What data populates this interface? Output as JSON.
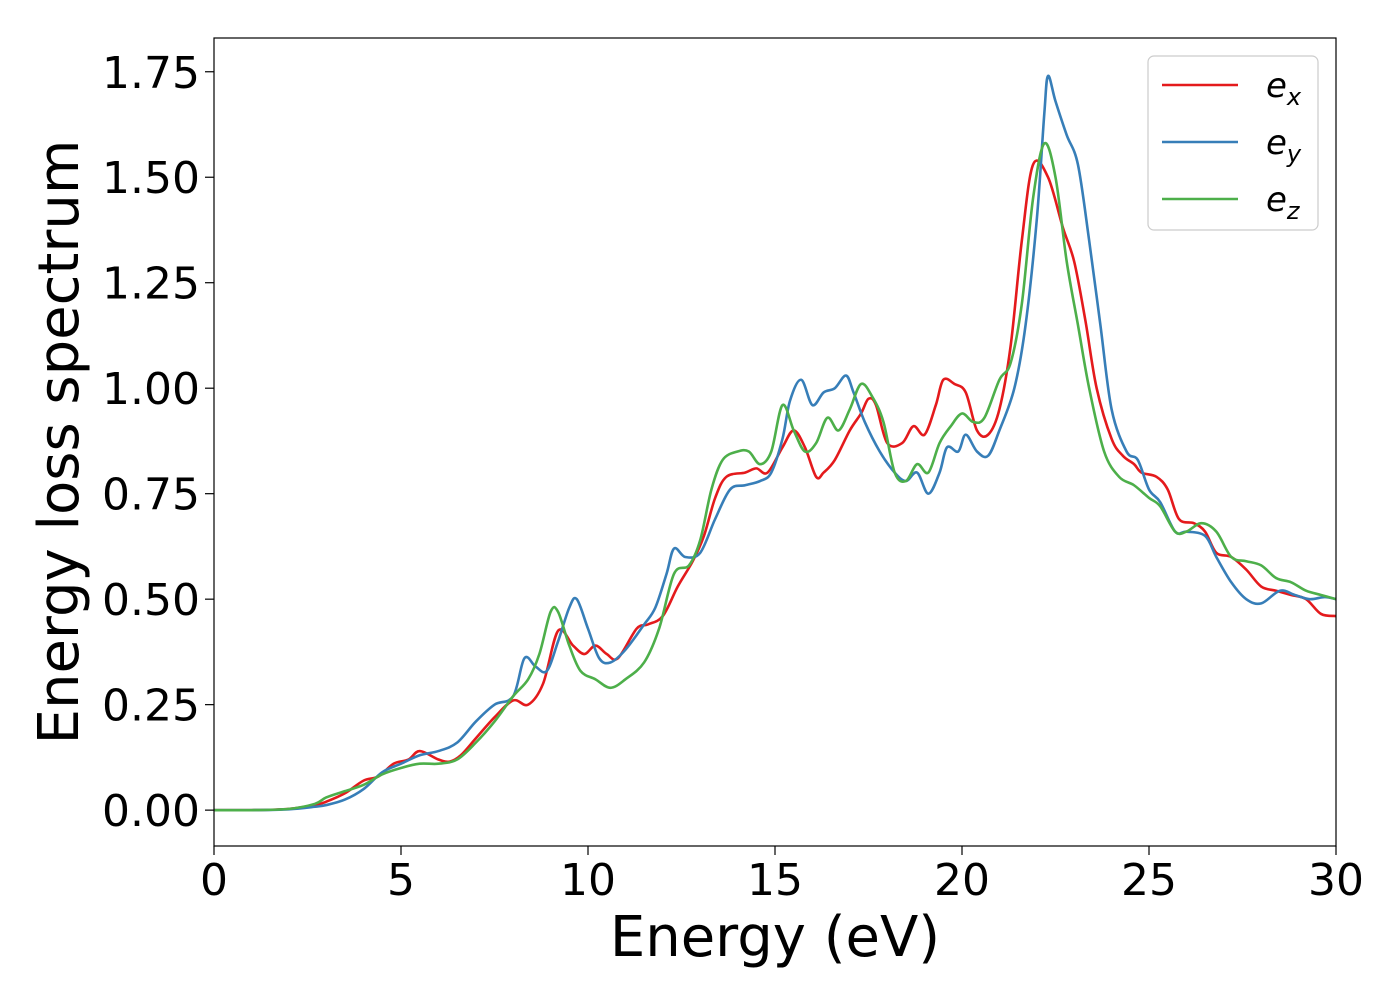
{
  "chart_data": {
    "type": "line",
    "xlabel": "Energy (eV)",
    "ylabel": "Energy loss spectrum",
    "xlim": [
      0,
      30
    ],
    "ylim": [
      -0.085,
      1.83
    ],
    "xticks": [
      0,
      5,
      10,
      15,
      20,
      25,
      30
    ],
    "xtick_labels": [
      "0",
      "5",
      "10",
      "15",
      "20",
      "25",
      "30"
    ],
    "yticks": [
      0,
      0.25,
      0.5,
      0.75,
      1.0,
      1.25,
      1.5,
      1.75
    ],
    "ytick_labels": [
      "0.00",
      "0.25",
      "0.50",
      "0.75",
      "1.00",
      "1.25",
      "1.50",
      "1.75"
    ],
    "grid": false,
    "legend_position": "top-right",
    "series": [
      {
        "name": "e",
        "subscript": "x",
        "color": "#e41a1c",
        "points": [
          [
            0,
            0
          ],
          [
            1,
            0
          ],
          [
            2,
            0.003
          ],
          [
            2.7,
            0.012
          ],
          [
            3,
            0.02
          ],
          [
            3.5,
            0.04
          ],
          [
            4,
            0.07
          ],
          [
            4.4,
            0.08
          ],
          [
            4.8,
            0.11
          ],
          [
            5.2,
            0.12
          ],
          [
            5.5,
            0.14
          ],
          [
            6,
            0.12
          ],
          [
            6.3,
            0.115
          ],
          [
            6.6,
            0.13
          ],
          [
            7,
            0.17
          ],
          [
            7.5,
            0.22
          ],
          [
            8,
            0.26
          ],
          [
            8.4,
            0.25
          ],
          [
            8.8,
            0.3
          ],
          [
            9.2,
            0.425
          ],
          [
            9.6,
            0.39
          ],
          [
            9.9,
            0.37
          ],
          [
            10.2,
            0.39
          ],
          [
            10.5,
            0.37
          ],
          [
            10.8,
            0.36
          ],
          [
            11.3,
            0.43
          ],
          [
            11.6,
            0.44
          ],
          [
            12,
            0.46
          ],
          [
            12.4,
            0.53
          ],
          [
            12.8,
            0.59
          ],
          [
            13.1,
            0.65
          ],
          [
            13.4,
            0.74
          ],
          [
            13.7,
            0.79
          ],
          [
            14.2,
            0.8
          ],
          [
            14.5,
            0.81
          ],
          [
            14.8,
            0.8
          ],
          [
            15.2,
            0.86
          ],
          [
            15.5,
            0.9
          ],
          [
            15.8,
            0.86
          ],
          [
            16.1,
            0.79
          ],
          [
            16.3,
            0.8
          ],
          [
            16.6,
            0.83
          ],
          [
            17,
            0.9
          ],
          [
            17.3,
            0.94
          ],
          [
            17.5,
            0.975
          ],
          [
            17.7,
            0.96
          ],
          [
            18,
            0.87
          ],
          [
            18.4,
            0.87
          ],
          [
            18.7,
            0.91
          ],
          [
            19,
            0.89
          ],
          [
            19.3,
            0.96
          ],
          [
            19.5,
            1.02
          ],
          [
            19.8,
            1.01
          ],
          [
            20.1,
            0.99
          ],
          [
            20.4,
            0.9
          ],
          [
            20.7,
            0.89
          ],
          [
            21,
            0.95
          ],
          [
            21.3,
            1.1
          ],
          [
            21.6,
            1.35
          ],
          [
            21.9,
            1.53
          ],
          [
            22.3,
            1.5
          ],
          [
            22.7,
            1.38
          ],
          [
            23,
            1.3
          ],
          [
            23.3,
            1.16
          ],
          [
            23.6,
            1.0
          ],
          [
            24,
            0.88
          ],
          [
            24.3,
            0.84
          ],
          [
            24.6,
            0.82
          ],
          [
            24.8,
            0.8
          ],
          [
            25.2,
            0.79
          ],
          [
            25.5,
            0.76
          ],
          [
            25.8,
            0.69
          ],
          [
            26.2,
            0.68
          ],
          [
            26.5,
            0.66
          ],
          [
            26.8,
            0.61
          ],
          [
            27.2,
            0.6
          ],
          [
            27.6,
            0.57
          ],
          [
            28,
            0.53
          ],
          [
            28.4,
            0.52
          ],
          [
            28.8,
            0.51
          ],
          [
            29.2,
            0.5
          ],
          [
            29.6,
            0.465
          ],
          [
            30,
            0.46
          ]
        ]
      },
      {
        "name": "e",
        "subscript": "y",
        "color": "#377eb8",
        "points": [
          [
            0,
            0
          ],
          [
            1,
            0
          ],
          [
            2,
            0.002
          ],
          [
            2.7,
            0.008
          ],
          [
            3,
            0.012
          ],
          [
            3.5,
            0.025
          ],
          [
            4,
            0.05
          ],
          [
            4.5,
            0.09
          ],
          [
            5,
            0.11
          ],
          [
            5.5,
            0.13
          ],
          [
            6,
            0.14
          ],
          [
            6.5,
            0.16
          ],
          [
            7,
            0.21
          ],
          [
            7.5,
            0.25
          ],
          [
            8,
            0.27
          ],
          [
            8.3,
            0.36
          ],
          [
            8.6,
            0.34
          ],
          [
            8.9,
            0.33
          ],
          [
            9.2,
            0.4
          ],
          [
            9.5,
            0.48
          ],
          [
            9.7,
            0.5
          ],
          [
            10,
            0.43
          ],
          [
            10.3,
            0.36
          ],
          [
            10.6,
            0.35
          ],
          [
            11,
            0.38
          ],
          [
            11.5,
            0.44
          ],
          [
            11.8,
            0.48
          ],
          [
            12.1,
            0.56
          ],
          [
            12.3,
            0.62
          ],
          [
            12.6,
            0.6
          ],
          [
            13,
            0.61
          ],
          [
            13.4,
            0.69
          ],
          [
            13.8,
            0.76
          ],
          [
            14.2,
            0.77
          ],
          [
            14.6,
            0.78
          ],
          [
            14.9,
            0.8
          ],
          [
            15.2,
            0.88
          ],
          [
            15.4,
            0.97
          ],
          [
            15.7,
            1.02
          ],
          [
            16,
            0.96
          ],
          [
            16.3,
            0.99
          ],
          [
            16.6,
            1.0
          ],
          [
            16.9,
            1.03
          ],
          [
            17.1,
            0.99
          ],
          [
            17.4,
            0.92
          ],
          [
            17.8,
            0.85
          ],
          [
            18.2,
            0.8
          ],
          [
            18.5,
            0.78
          ],
          [
            18.8,
            0.8
          ],
          [
            19.1,
            0.75
          ],
          [
            19.4,
            0.8
          ],
          [
            19.6,
            0.86
          ],
          [
            19.9,
            0.85
          ],
          [
            20.1,
            0.89
          ],
          [
            20.4,
            0.85
          ],
          [
            20.7,
            0.84
          ],
          [
            21,
            0.9
          ],
          [
            21.4,
            1.0
          ],
          [
            21.7,
            1.15
          ],
          [
            22,
            1.4
          ],
          [
            22.2,
            1.65
          ],
          [
            22.3,
            1.74
          ],
          [
            22.5,
            1.68
          ],
          [
            22.8,
            1.6
          ],
          [
            23.1,
            1.53
          ],
          [
            23.4,
            1.35
          ],
          [
            23.7,
            1.15
          ],
          [
            24,
            0.95
          ],
          [
            24.4,
            0.85
          ],
          [
            24.7,
            0.83
          ],
          [
            25,
            0.76
          ],
          [
            25.3,
            0.73
          ],
          [
            25.7,
            0.66
          ],
          [
            26,
            0.66
          ],
          [
            26.5,
            0.65
          ],
          [
            26.8,
            0.6
          ],
          [
            27.2,
            0.54
          ],
          [
            27.6,
            0.5
          ],
          [
            28,
            0.49
          ],
          [
            28.5,
            0.52
          ],
          [
            28.9,
            0.51
          ],
          [
            29.3,
            0.5
          ],
          [
            29.7,
            0.505
          ],
          [
            30,
            0.5
          ]
        ]
      },
      {
        "name": "e",
        "subscript": "z",
        "color": "#4daf4a",
        "points": [
          [
            0,
            0
          ],
          [
            1,
            0
          ],
          [
            2,
            0.003
          ],
          [
            2.7,
            0.015
          ],
          [
            3,
            0.03
          ],
          [
            3.5,
            0.045
          ],
          [
            4,
            0.06
          ],
          [
            4.5,
            0.085
          ],
          [
            5,
            0.1
          ],
          [
            5.5,
            0.11
          ],
          [
            6,
            0.11
          ],
          [
            6.5,
            0.12
          ],
          [
            7,
            0.16
          ],
          [
            7.5,
            0.21
          ],
          [
            8,
            0.27
          ],
          [
            8.4,
            0.31
          ],
          [
            8.7,
            0.37
          ],
          [
            9,
            0.47
          ],
          [
            9.2,
            0.47
          ],
          [
            9.5,
            0.39
          ],
          [
            9.8,
            0.33
          ],
          [
            10.2,
            0.31
          ],
          [
            10.6,
            0.29
          ],
          [
            11,
            0.31
          ],
          [
            11.5,
            0.35
          ],
          [
            11.9,
            0.43
          ],
          [
            12.3,
            0.56
          ],
          [
            12.7,
            0.58
          ],
          [
            13,
            0.64
          ],
          [
            13.3,
            0.76
          ],
          [
            13.6,
            0.83
          ],
          [
            14,
            0.85
          ],
          [
            14.3,
            0.85
          ],
          [
            14.6,
            0.82
          ],
          [
            14.9,
            0.85
          ],
          [
            15.2,
            0.96
          ],
          [
            15.5,
            0.9
          ],
          [
            15.8,
            0.85
          ],
          [
            16.1,
            0.87
          ],
          [
            16.4,
            0.93
          ],
          [
            16.7,
            0.9
          ],
          [
            17,
            0.95
          ],
          [
            17.3,
            1.01
          ],
          [
            17.6,
            0.98
          ],
          [
            17.9,
            0.92
          ],
          [
            18.2,
            0.8
          ],
          [
            18.5,
            0.78
          ],
          [
            18.8,
            0.82
          ],
          [
            19.1,
            0.8
          ],
          [
            19.4,
            0.87
          ],
          [
            19.7,
            0.91
          ],
          [
            20,
            0.94
          ],
          [
            20.3,
            0.92
          ],
          [
            20.6,
            0.93
          ],
          [
            21,
            1.02
          ],
          [
            21.3,
            1.06
          ],
          [
            21.6,
            1.2
          ],
          [
            21.9,
            1.45
          ],
          [
            22.2,
            1.58
          ],
          [
            22.5,
            1.5
          ],
          [
            22.8,
            1.3
          ],
          [
            23.1,
            1.15
          ],
          [
            23.4,
            1.0
          ],
          [
            23.8,
            0.85
          ],
          [
            24.2,
            0.79
          ],
          [
            24.6,
            0.77
          ],
          [
            25,
            0.74
          ],
          [
            25.3,
            0.72
          ],
          [
            25.7,
            0.66
          ],
          [
            26,
            0.66
          ],
          [
            26.4,
            0.68
          ],
          [
            26.8,
            0.66
          ],
          [
            27.2,
            0.6
          ],
          [
            27.6,
            0.59
          ],
          [
            28,
            0.58
          ],
          [
            28.4,
            0.55
          ],
          [
            28.8,
            0.54
          ],
          [
            29.2,
            0.52
          ],
          [
            29.6,
            0.51
          ],
          [
            30,
            0.5
          ]
        ]
      }
    ]
  }
}
